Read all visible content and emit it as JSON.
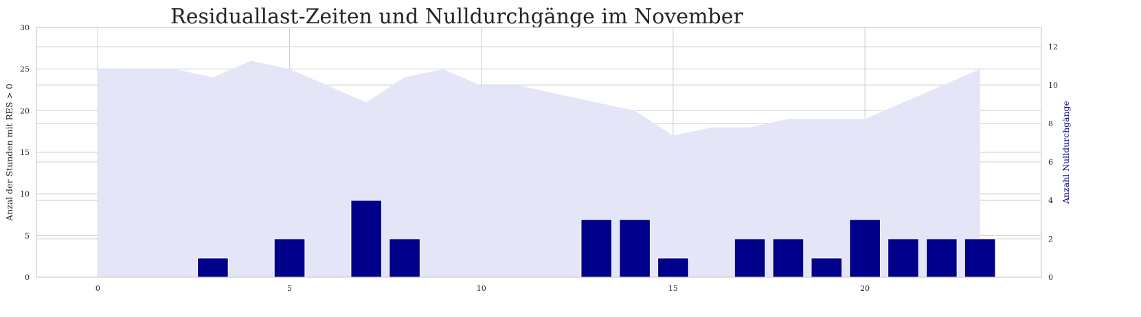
{
  "chart_data": {
    "type": "bar",
    "title": "Residuallast-Zeiten und Nulldurchgänge im November",
    "colors": {
      "area": "#e5e5f8",
      "bars": "#00008b",
      "right_label": "#00008b"
    },
    "x": [
      0,
      1,
      2,
      3,
      4,
      5,
      6,
      7,
      8,
      9,
      10,
      11,
      12,
      13,
      14,
      15,
      16,
      17,
      18,
      19,
      20,
      21,
      22,
      23
    ],
    "xlim": [
      -1.6,
      24.6
    ],
    "xticks": [
      0,
      5,
      10,
      15,
      20
    ],
    "grid": true,
    "left_axis": {
      "ylabel": "Anzal der Stunden mit RES > 0",
      "ylim": [
        0,
        30
      ],
      "ticks": [
        0,
        5,
        10,
        15,
        20,
        25,
        30
      ],
      "series_type": "area",
      "values": [
        25,
        25,
        25,
        24,
        26,
        25,
        23,
        21,
        24,
        25,
        23,
        23,
        22,
        21,
        20,
        17,
        18,
        18,
        19,
        19,
        19,
        21,
        23,
        25
      ]
    },
    "right_axis": {
      "ylabel": "Anzahl Nulldurchgänge",
      "ylim": [
        0,
        13
      ],
      "ticks": [
        0,
        2,
        4,
        6,
        8,
        10,
        12
      ],
      "series_type": "bar",
      "values": [
        0,
        0,
        0,
        1,
        0,
        2,
        0,
        4,
        2,
        0,
        0,
        0,
        0,
        3,
        3,
        1,
        0,
        2,
        2,
        1,
        3,
        2,
        2,
        2
      ]
    }
  }
}
